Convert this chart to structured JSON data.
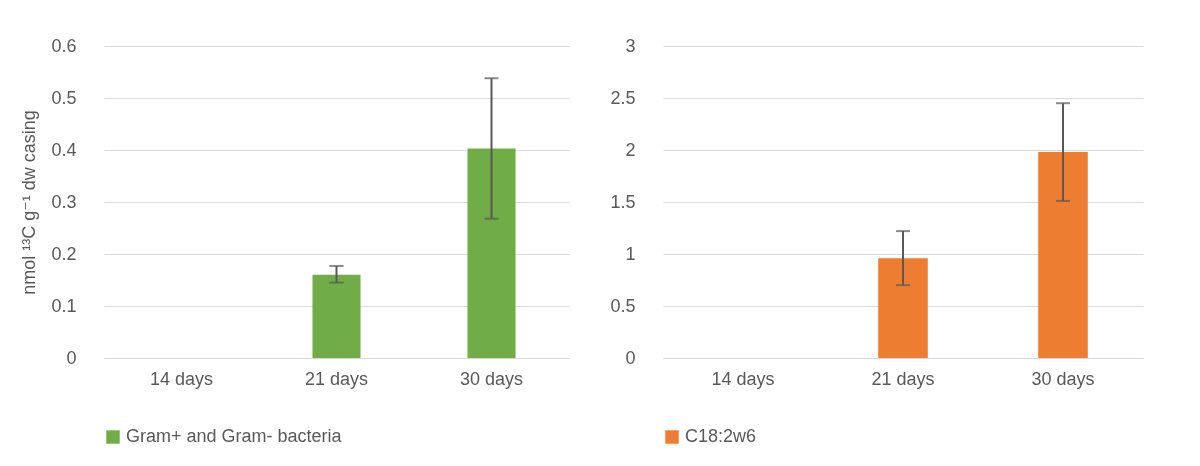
{
  "chart_data": [
    {
      "type": "bar",
      "ylabel": "nmol ¹³C g⁻¹ dw casing",
      "categories": [
        "14 days",
        "21 days",
        "30 days"
      ],
      "series": [
        {
          "name": "Gram+ and Gram- bacteria",
          "color": "#70ad47",
          "values": [
            0,
            0.16,
            0.403
          ],
          "errors": [
            null,
            [
              0.145,
              0.177
            ],
            [
              0.268,
              0.538
            ]
          ]
        }
      ],
      "ylim": [
        0,
        0.6
      ],
      "yticks": [
        0,
        0.1,
        0.2,
        0.3,
        0.4,
        0.5,
        0.6
      ],
      "grid": "y",
      "legend": "bottom"
    },
    {
      "type": "bar",
      "categories": [
        "14 days",
        "21 days",
        "30 days"
      ],
      "series": [
        {
          "name": "C18:2w6",
          "color": "#ed7d31",
          "values": [
            0,
            0.96,
            1.98
          ],
          "errors": [
            null,
            [
              0.7,
              1.22
            ],
            [
              1.51,
              2.45
            ]
          ]
        }
      ],
      "ylim": [
        0,
        3
      ],
      "yticks": [
        0,
        0.5,
        1,
        1.5,
        2,
        2.5,
        3
      ],
      "grid": "y",
      "legend": "bottom"
    }
  ]
}
